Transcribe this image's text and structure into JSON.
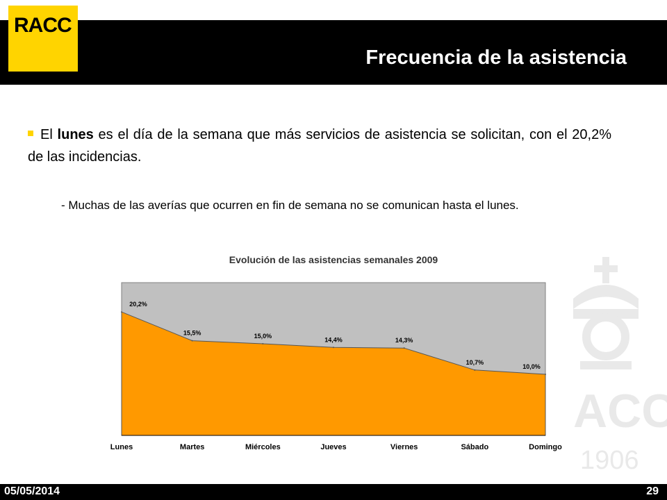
{
  "header": {
    "logo_text": "RACC",
    "title": "Frecuencia de la asistencia"
  },
  "bullet": {
    "prefix": "El ",
    "bold_word": "lunes",
    "rest": " es el día de la semana que más servicios de asistencia se solicitan, con el 20,2% de las incidencias."
  },
  "sub_bullet": "- Muchas de las averías que ocurren en fin de semana no se comunican hasta el lunes.",
  "watermark": {
    "text": "ACC",
    "year": "1906"
  },
  "footer": {
    "date": "05/05/2014",
    "page": "29"
  },
  "colors": {
    "brand_yellow": "#ffd400",
    "area_fill": "#ff9900",
    "plot_bg": "#c0c0c0"
  },
  "chart_data": {
    "type": "area",
    "title": "Evolución de las asistencias semanales 2009",
    "categories": [
      "Lunes",
      "Martes",
      "Miércoles",
      "Jueves",
      "Viernes",
      "Sábado",
      "Domingo"
    ],
    "series": [
      {
        "values": [
          20.2,
          15.5,
          15.0,
          14.4,
          14.3,
          10.7,
          10.0
        ],
        "labels": [
          "20,2%",
          "15,5%",
          "15,0%",
          "14,4%",
          "14,3%",
          "10,7%",
          "10,0%"
        ]
      }
    ],
    "ylim": [
      0,
      25
    ],
    "grid": false,
    "legend": "none"
  }
}
